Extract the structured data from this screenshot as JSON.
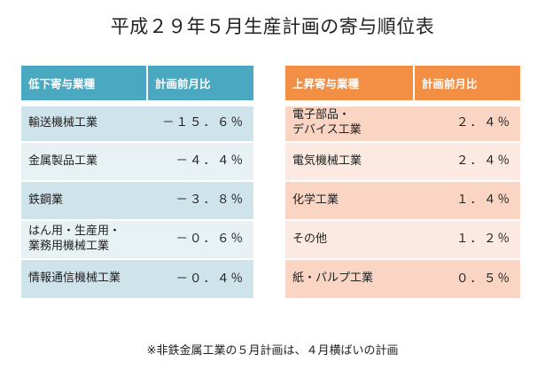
{
  "title": "平成２９年５月生産計画の寄与順位表",
  "left_table": {
    "header_industry": "低下寄与業種",
    "header_ratio": "計画前月比",
    "rows": [
      {
        "industry": "輸送機械工業",
        "ratio": "－１５．６％"
      },
      {
        "industry": "金属製品工業",
        "ratio": "－４．４％"
      },
      {
        "industry": "鉄鋼業",
        "ratio": "－３．８％"
      },
      {
        "industry": "はん用・生産用・\n業務用機械工業",
        "ratio": "－０．６％"
      },
      {
        "industry": "情報通信機械工業",
        "ratio": "－０．４％"
      }
    ]
  },
  "right_table": {
    "header_industry": "上昇寄与業種",
    "header_ratio": "計画前月比",
    "rows": [
      {
        "industry": "電子部品・\nデバイス工業",
        "ratio": "２．４％"
      },
      {
        "industry": "電気機械工業",
        "ratio": "２．４％"
      },
      {
        "industry": "化学工業",
        "ratio": "１．４％"
      },
      {
        "industry": "その他",
        "ratio": "１．２％"
      },
      {
        "industry": "紙・パルプ工業",
        "ratio": "０．５％"
      }
    ]
  },
  "footnote": "※非鉄金属工業の５月計画は、４月横ばいの計画",
  "colors": {
    "left_header": "#4aa8c0",
    "left_row_dark": "#cfe3ea",
    "left_row_light": "#e8f1f4",
    "right_header": "#f28f45",
    "right_row_dark": "#fad5c4",
    "right_row_light": "#fceae2"
  }
}
